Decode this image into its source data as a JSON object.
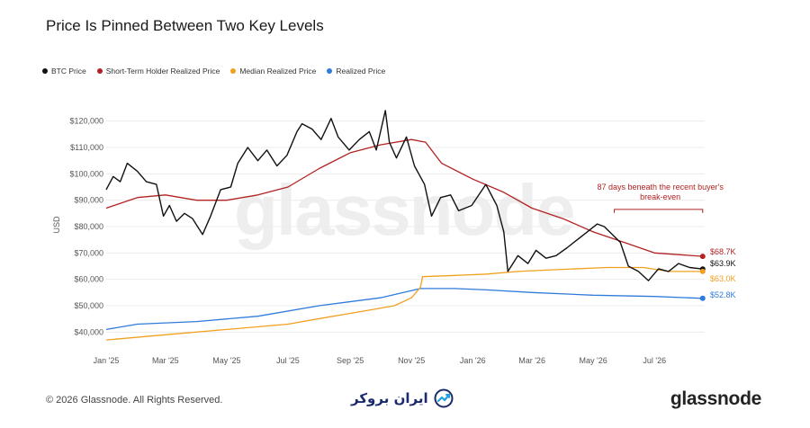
{
  "title": "Price Is Pinned Between Two Key Levels",
  "legend": [
    {
      "label": "BTC Price",
      "color": "#111111"
    },
    {
      "label": "Short-Term Holder Realized Price",
      "color": "#b22222"
    },
    {
      "label": "Median Realized Price",
      "color": "#f0a020"
    },
    {
      "label": "Realized Price",
      "color": "#2f7bdc"
    }
  ],
  "watermark": "glassnode",
  "footer": {
    "copyright": "© 2026 Glassnode. All Rights Reserved.",
    "broker": "ایران بروکر",
    "brand": "glassnode"
  },
  "chart_data": {
    "type": "line",
    "ylabel": "USD",
    "ylim": [
      35000,
      125000
    ],
    "yticks": [
      40000,
      50000,
      60000,
      70000,
      80000,
      90000,
      100000,
      110000,
      120000
    ],
    "ytick_labels": [
      "$40,000",
      "$50,000",
      "$60,000",
      "$70,000",
      "$80,000",
      "$90,000",
      "$100,000",
      "$110,000",
      "$120,000"
    ],
    "x_start": "2025-01-01",
    "x_end": "2026-08-20",
    "xticks": [
      "2025-01-01",
      "2025-03-01",
      "2025-05-01",
      "2025-07-01",
      "2025-09-01",
      "2025-11-01",
      "2026-01-01",
      "2026-03-01",
      "2026-05-01",
      "2026-07-01"
    ],
    "xtick_labels": [
      "Jan '25",
      "Mar '25",
      "May '25",
      "Jul '25",
      "Sep '25",
      "Nov '25",
      "Jan '26",
      "Mar '26",
      "May '26",
      "Jul '26"
    ],
    "grid": true,
    "legend_position": "top-left",
    "series": [
      {
        "name": "BTC Price",
        "color": "#111111",
        "points": [
          [
            "2025-01-01",
            94000
          ],
          [
            "2025-01-08",
            99000
          ],
          [
            "2025-01-15",
            97000
          ],
          [
            "2025-01-22",
            104000
          ],
          [
            "2025-02-01",
            101000
          ],
          [
            "2025-02-10",
            97000
          ],
          [
            "2025-02-20",
            96000
          ],
          [
            "2025-02-27",
            84000
          ],
          [
            "2025-03-05",
            88000
          ],
          [
            "2025-03-12",
            82000
          ],
          [
            "2025-03-20",
            85000
          ],
          [
            "2025-03-28",
            83000
          ],
          [
            "2025-04-07",
            77000
          ],
          [
            "2025-04-15",
            84000
          ],
          [
            "2025-04-25",
            94000
          ],
          [
            "2025-05-05",
            95000
          ],
          [
            "2025-05-12",
            104000
          ],
          [
            "2025-05-22",
            110000
          ],
          [
            "2025-06-01",
            105000
          ],
          [
            "2025-06-10",
            109000
          ],
          [
            "2025-06-20",
            103000
          ],
          [
            "2025-06-30",
            107000
          ],
          [
            "2025-07-10",
            116000
          ],
          [
            "2025-07-15",
            119000
          ],
          [
            "2025-07-25",
            117000
          ],
          [
            "2025-08-03",
            113000
          ],
          [
            "2025-08-13",
            121000
          ],
          [
            "2025-08-20",
            114000
          ],
          [
            "2025-08-31",
            109000
          ],
          [
            "2025-09-10",
            113000
          ],
          [
            "2025-09-20",
            116000
          ],
          [
            "2025-09-27",
            109000
          ],
          [
            "2025-10-06",
            124000
          ],
          [
            "2025-10-10",
            112000
          ],
          [
            "2025-10-17",
            106000
          ],
          [
            "2025-10-27",
            114000
          ],
          [
            "2025-11-04",
            103000
          ],
          [
            "2025-11-14",
            96000
          ],
          [
            "2025-11-21",
            84000
          ],
          [
            "2025-11-30",
            91000
          ],
          [
            "2025-12-10",
            92000
          ],
          [
            "2025-12-18",
            86000
          ],
          [
            "2025-12-31",
            88000
          ],
          [
            "2026-01-14",
            96000
          ],
          [
            "2026-01-25",
            88000
          ],
          [
            "2026-02-01",
            78000
          ],
          [
            "2026-02-05",
            63000
          ],
          [
            "2026-02-15",
            69000
          ],
          [
            "2026-02-25",
            66000
          ],
          [
            "2026-03-05",
            71000
          ],
          [
            "2026-03-15",
            68000
          ],
          [
            "2026-03-25",
            69000
          ],
          [
            "2026-04-05",
            72000
          ],
          [
            "2026-04-15",
            75000
          ],
          [
            "2026-04-25",
            78000
          ],
          [
            "2026-05-05",
            81000
          ],
          [
            "2026-05-12",
            80000
          ],
          [
            "2026-05-20",
            77000
          ],
          [
            "2026-05-28",
            74000
          ],
          [
            "2026-06-05",
            65000
          ],
          [
            "2026-06-15",
            63000
          ],
          [
            "2026-06-25",
            59500
          ],
          [
            "2026-07-05",
            64000
          ],
          [
            "2026-07-15",
            63000
          ],
          [
            "2026-07-25",
            66000
          ],
          [
            "2026-08-05",
            64500
          ],
          [
            "2026-08-18",
            63900
          ]
        ]
      },
      {
        "name": "Short-Term Holder Realized Price",
        "color": "#b22222",
        "points": [
          [
            "2025-01-01",
            87000
          ],
          [
            "2025-02-01",
            91000
          ],
          [
            "2025-03-01",
            92000
          ],
          [
            "2025-04-01",
            90000
          ],
          [
            "2025-05-01",
            90000
          ],
          [
            "2025-06-01",
            92000
          ],
          [
            "2025-07-01",
            95000
          ],
          [
            "2025-08-01",
            102000
          ],
          [
            "2025-09-01",
            108000
          ],
          [
            "2025-10-01",
            111000
          ],
          [
            "2025-11-01",
            113000
          ],
          [
            "2025-11-15",
            112000
          ],
          [
            "2025-12-01",
            104000
          ],
          [
            "2026-01-01",
            98000
          ],
          [
            "2026-02-01",
            93000
          ],
          [
            "2026-03-01",
            87000
          ],
          [
            "2026-04-01",
            83000
          ],
          [
            "2026-05-01",
            78000
          ],
          [
            "2026-06-01",
            74000
          ],
          [
            "2026-07-01",
            70000
          ],
          [
            "2026-08-18",
            68700
          ]
        ]
      },
      {
        "name": "Median Realized Price",
        "color": "#f0a020",
        "points": [
          [
            "2025-01-01",
            37000
          ],
          [
            "2025-03-01",
            39000
          ],
          [
            "2025-05-01",
            41000
          ],
          [
            "2025-07-01",
            43000
          ],
          [
            "2025-08-15",
            46000
          ],
          [
            "2025-09-15",
            48000
          ],
          [
            "2025-10-15",
            50000
          ],
          [
            "2025-11-01",
            53000
          ],
          [
            "2025-11-10",
            57000
          ],
          [
            "2025-11-12",
            61000
          ],
          [
            "2025-12-15",
            61500
          ],
          [
            "2026-01-15",
            62000
          ],
          [
            "2026-02-15",
            63000
          ],
          [
            "2026-03-15",
            63500
          ],
          [
            "2026-05-15",
            64500
          ],
          [
            "2026-06-20",
            64500
          ],
          [
            "2026-07-15",
            63000
          ],
          [
            "2026-08-18",
            63000
          ]
        ]
      },
      {
        "name": "Realized Price",
        "color": "#2f7bdc",
        "points": [
          [
            "2025-01-01",
            41000
          ],
          [
            "2025-02-01",
            43000
          ],
          [
            "2025-04-01",
            44000
          ],
          [
            "2025-06-01",
            46000
          ],
          [
            "2025-08-01",
            50000
          ],
          [
            "2025-10-01",
            53000
          ],
          [
            "2025-11-10",
            56500
          ],
          [
            "2025-12-15",
            56500
          ],
          [
            "2026-01-15",
            56000
          ],
          [
            "2026-03-01",
            55000
          ],
          [
            "2026-05-01",
            54000
          ],
          [
            "2026-07-01",
            53500
          ],
          [
            "2026-08-18",
            52800
          ]
        ]
      }
    ],
    "end_labels": [
      {
        "series": "Short-Term Holder Realized Price",
        "text": "$68.7K",
        "value": 68700,
        "color": "#b22222"
      },
      {
        "series": "BTC Price",
        "text": "$63.9K",
        "value": 63900,
        "color": "#111111"
      },
      {
        "series": "Median Realized Price",
        "text": "$63.0K",
        "value": 63000,
        "color": "#f0a020"
      },
      {
        "series": "Realized Price",
        "text": "$52.8K",
        "value": 52800,
        "color": "#2f7bdc"
      }
    ],
    "annotations": [
      {
        "text_lines": [
          "87 days beneath the recent buyer's",
          "break-even"
        ],
        "x_from": "2026-05-22",
        "x_to": "2026-08-18",
        "y": 86500,
        "color": "#b22222"
      }
    ]
  }
}
